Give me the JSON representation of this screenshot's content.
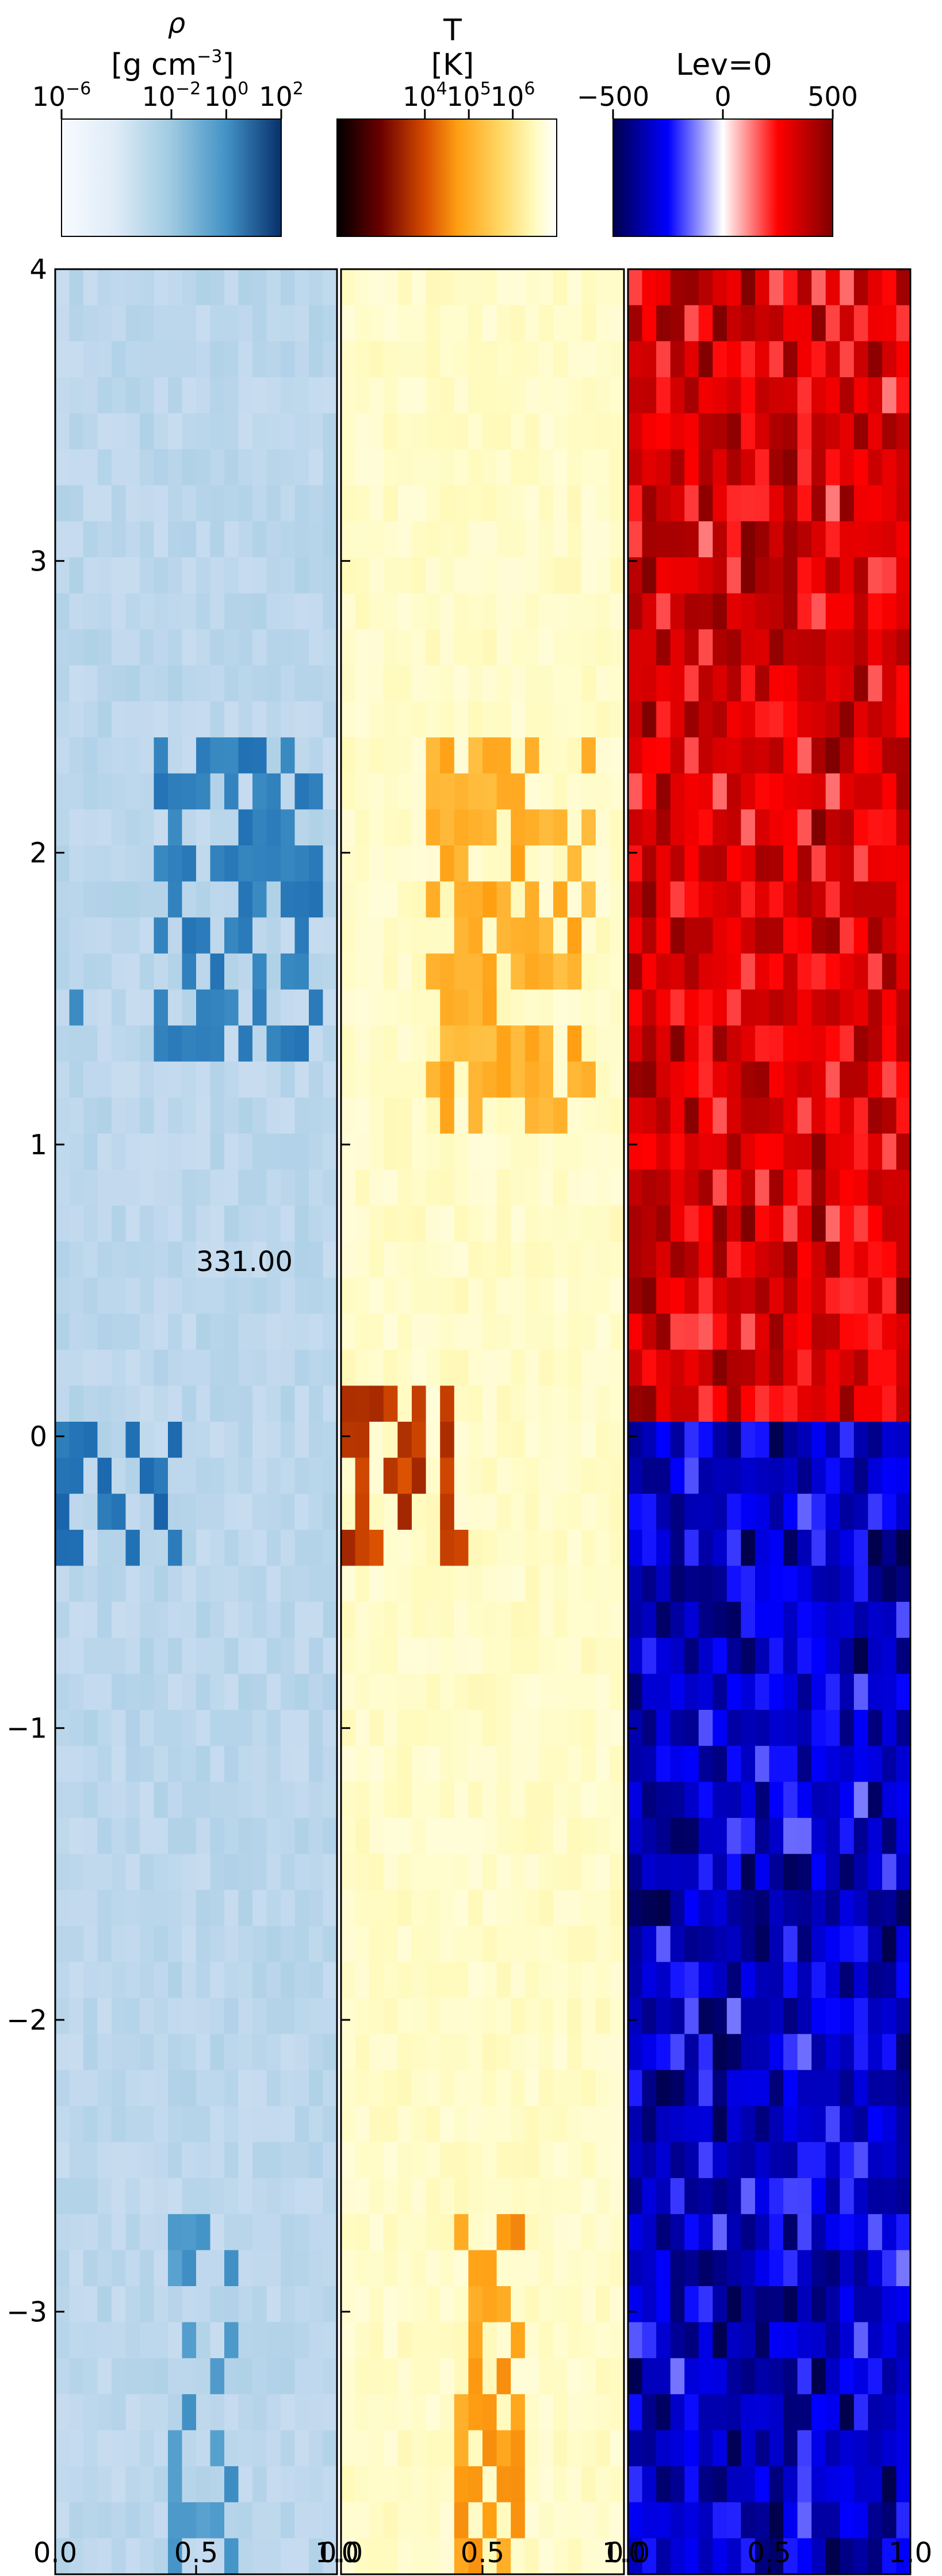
{
  "chart_data": [
    {
      "type": "heatmap",
      "panel": "density",
      "colorbar": {
        "label_line1": "ρ",
        "label_line2_text": "[g cm",
        "label_line2_sup": "−3",
        "label_line2_end": "]",
        "colormap": "Blues",
        "scale": "log",
        "range": [
          "1e-6",
          "1e2"
        ],
        "ticks": [
          {
            "base": "10",
            "exp": "−6",
            "value": -6
          },
          {
            "base": "10",
            "exp": "−2",
            "value": -2
          },
          {
            "base": "10",
            "exp": "0",
            "value": 0
          },
          {
            "base": "10",
            "exp": "2",
            "value": 2
          }
        ]
      },
      "xlim": [
        0.0,
        1.0
      ],
      "ylim": [
        -3.9,
        4.0
      ],
      "xticks": [
        "0.0",
        "0.5",
        "1.0"
      ],
      "annotation": "331.00",
      "features": [
        {
          "x": [
            0.35,
            0.95
          ],
          "y": [
            1.3,
            2.4
          ],
          "level": 0.7
        },
        {
          "x": [
            0.0,
            0.45
          ],
          "y": [
            -0.5,
            0.1
          ],
          "level": 0.75
        },
        {
          "x": [
            0.4,
            0.65
          ],
          "y": [
            -3.9,
            -2.7
          ],
          "level": 0.6
        },
        {
          "x": [
            0.0,
            0.1
          ],
          "y": [
            1.2,
            1.6
          ],
          "level": 0.6
        }
      ]
    },
    {
      "type": "heatmap",
      "panel": "temperature",
      "colorbar": {
        "label_line1": "T",
        "label_line2": "[K]",
        "colormap": "afmhot",
        "scale": "log",
        "range": [
          "1e2",
          "1e7"
        ],
        "ticks": [
          {
            "base": "10",
            "exp": "4",
            "value": 4
          },
          {
            "base": "10",
            "exp": "5",
            "value": 5
          },
          {
            "base": "10",
            "exp": "6",
            "value": 6
          }
        ]
      },
      "xlim": [
        0.0,
        1.0
      ],
      "ylim": [
        -3.9,
        4.0
      ],
      "xticks": [
        "0.0",
        "0.5",
        "1.0"
      ],
      "features": [
        {
          "x": [
            0.3,
            0.9
          ],
          "y": [
            1.0,
            2.4
          ],
          "level": 0.55
        },
        {
          "x": [
            0.0,
            0.45
          ],
          "y": [
            -0.5,
            0.15
          ],
          "level": 0.3
        },
        {
          "x": [
            0.4,
            0.65
          ],
          "y": [
            -3.9,
            -2.7
          ],
          "level": 0.5
        }
      ]
    },
    {
      "type": "heatmap",
      "panel": "lev",
      "colorbar": {
        "label_line1": "Lev=0",
        "colormap": "seismic",
        "scale": "linear",
        "range": [
          -500,
          500
        ],
        "ticks": [
          {
            "text": "−500",
            "value": -500
          },
          {
            "text": "0",
            "value": 0
          },
          {
            "text": "500",
            "value": 500
          }
        ]
      },
      "xlim": [
        0.0,
        1.0
      ],
      "ylim": [
        -3.9,
        4.0
      ],
      "xticks": [
        "0.0",
        "0.5",
        "1.0"
      ],
      "regions": [
        {
          "y": [
            0.1,
            4.0
          ],
          "value": 420
        },
        {
          "y": [
            -3.9,
            0.0
          ],
          "value": -420
        }
      ]
    }
  ],
  "y_axis": {
    "ticks": [
      {
        "text": "4",
        "value": 4
      },
      {
        "text": "3",
        "value": 3
      },
      {
        "text": "2",
        "value": 2
      },
      {
        "text": "1",
        "value": 1
      },
      {
        "text": "0",
        "value": 0
      },
      {
        "text": "−1",
        "value": -1
      },
      {
        "text": "−2",
        "value": -2
      },
      {
        "text": "−3",
        "value": -3
      }
    ]
  },
  "colors": {
    "frame": "#000000",
    "text": "#000000"
  }
}
